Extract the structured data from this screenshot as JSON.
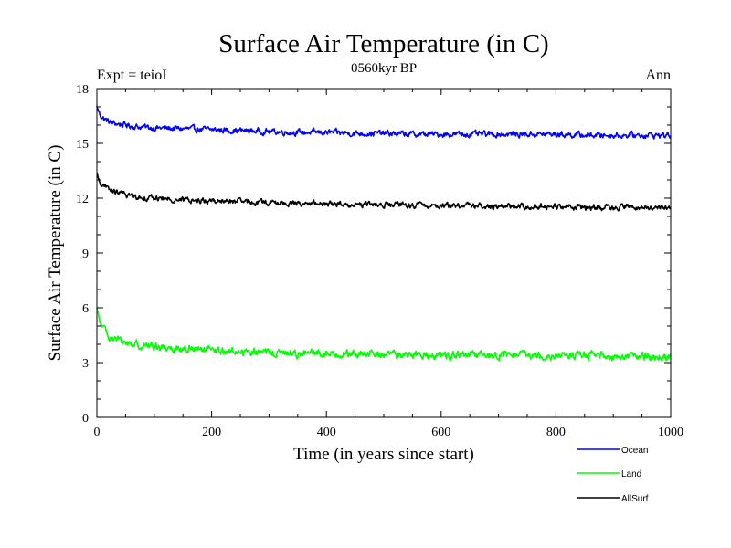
{
  "chart_data": {
    "type": "line",
    "title": "Surface Air Temperature (in C)",
    "subtitle": "0560kyr BP",
    "left_label": "Expt = teioI",
    "right_label": "Ann",
    "xlabel": "Time (in years since start)",
    "ylabel": "Surface Air Temperature (in C)",
    "xlim": [
      0,
      1000
    ],
    "ylim": [
      0,
      18
    ],
    "x_ticks": [
      "0",
      "200",
      "400",
      "600",
      "800",
      "1000"
    ],
    "y_ticks": [
      "0",
      "3",
      "6",
      "9",
      "12",
      "15",
      "18"
    ],
    "grid": false,
    "legend_position": "bottom-right",
    "series": [
      {
        "name": "Ocean",
        "color": "#0000ff",
        "x": [
          0,
          5,
          10,
          20,
          30,
          50,
          75,
          100,
          150,
          200,
          250,
          300,
          350,
          400,
          450,
          500,
          550,
          600,
          650,
          700,
          750,
          800,
          850,
          900,
          950,
          1000
        ],
        "values": [
          17.0,
          16.6,
          16.4,
          16.2,
          16.1,
          16.0,
          15.9,
          15.85,
          15.8,
          15.75,
          15.7,
          15.65,
          15.6,
          15.6,
          15.55,
          15.55,
          15.5,
          15.5,
          15.5,
          15.5,
          15.5,
          15.5,
          15.45,
          15.45,
          15.45,
          15.45
        ]
      },
      {
        "name": "Land",
        "color": "#00ff00",
        "x": [
          0,
          5,
          10,
          20,
          30,
          50,
          75,
          100,
          150,
          200,
          250,
          300,
          350,
          400,
          450,
          500,
          550,
          600,
          650,
          700,
          750,
          800,
          850,
          900,
          950,
          1000
        ],
        "values": [
          5.9,
          5.2,
          4.9,
          4.5,
          4.3,
          4.1,
          3.95,
          3.9,
          3.75,
          3.65,
          3.6,
          3.55,
          3.5,
          3.5,
          3.45,
          3.45,
          3.45,
          3.4,
          3.4,
          3.4,
          3.4,
          3.4,
          3.4,
          3.35,
          3.35,
          3.3
        ]
      },
      {
        "name": "AllSurf",
        "color": "#000000",
        "x": [
          0,
          5,
          10,
          20,
          30,
          50,
          75,
          100,
          150,
          200,
          250,
          300,
          350,
          400,
          450,
          500,
          550,
          600,
          650,
          700,
          750,
          800,
          850,
          900,
          950,
          1000
        ],
        "values": [
          13.3,
          12.9,
          12.7,
          12.5,
          12.35,
          12.2,
          12.05,
          12.0,
          11.9,
          11.85,
          11.8,
          11.75,
          11.7,
          11.7,
          11.65,
          11.65,
          11.6,
          11.6,
          11.6,
          11.55,
          11.55,
          11.55,
          11.5,
          11.5,
          11.5,
          11.45
        ]
      }
    ]
  }
}
